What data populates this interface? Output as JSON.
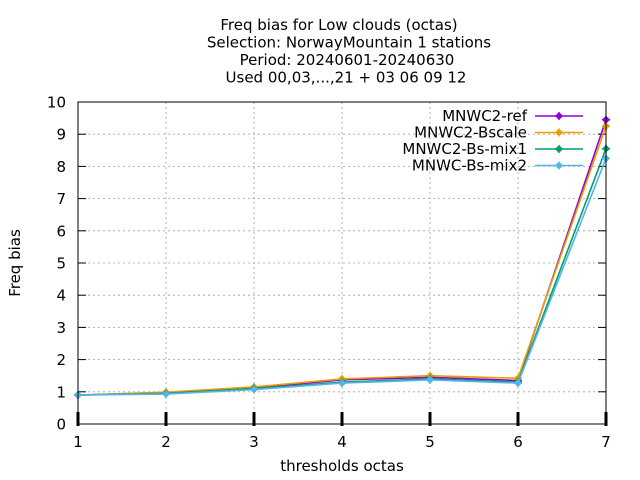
{
  "chart_data": {
    "type": "line",
    "title_lines": [
      "Freq bias  for Low clouds (octas)",
      "Selection: NorwayMountain      1 stations",
      "Period: 20240601-20240630",
      "Used 00,03,...,21 + 03 06 09 12"
    ],
    "xlabel": "thresholds octas",
    "ylabel": "Freq bias",
    "xlim": [
      1,
      7
    ],
    "ylim": [
      0,
      10
    ],
    "x_ticks": [
      1,
      2,
      3,
      4,
      5,
      6,
      7
    ],
    "y_ticks": [
      0,
      1,
      2,
      3,
      4,
      5,
      6,
      7,
      8,
      9,
      10
    ],
    "grid": true,
    "legend_position": "top-right",
    "x": [
      1,
      2,
      3,
      4,
      5,
      6,
      7
    ],
    "series": [
      {
        "name": "MNWC2-ref",
        "color": "#9400d3",
        "values": [
          0.9,
          0.97,
          1.12,
          1.37,
          1.45,
          1.35,
          9.45
        ]
      },
      {
        "name": "MNWC2-Bscale",
        "color": "#e69f00",
        "values": [
          0.9,
          0.99,
          1.15,
          1.4,
          1.5,
          1.42,
          9.25
        ]
      },
      {
        "name": "MNWC2-Bs-mix1",
        "color": "#009e73",
        "values": [
          0.9,
          0.95,
          1.1,
          1.3,
          1.4,
          1.3,
          8.55
        ]
      },
      {
        "name": "MNWC-Bs-mix2",
        "color": "#56b4e9",
        "values": [
          0.9,
          0.93,
          1.07,
          1.27,
          1.37,
          1.27,
          8.25
        ]
      }
    ]
  }
}
